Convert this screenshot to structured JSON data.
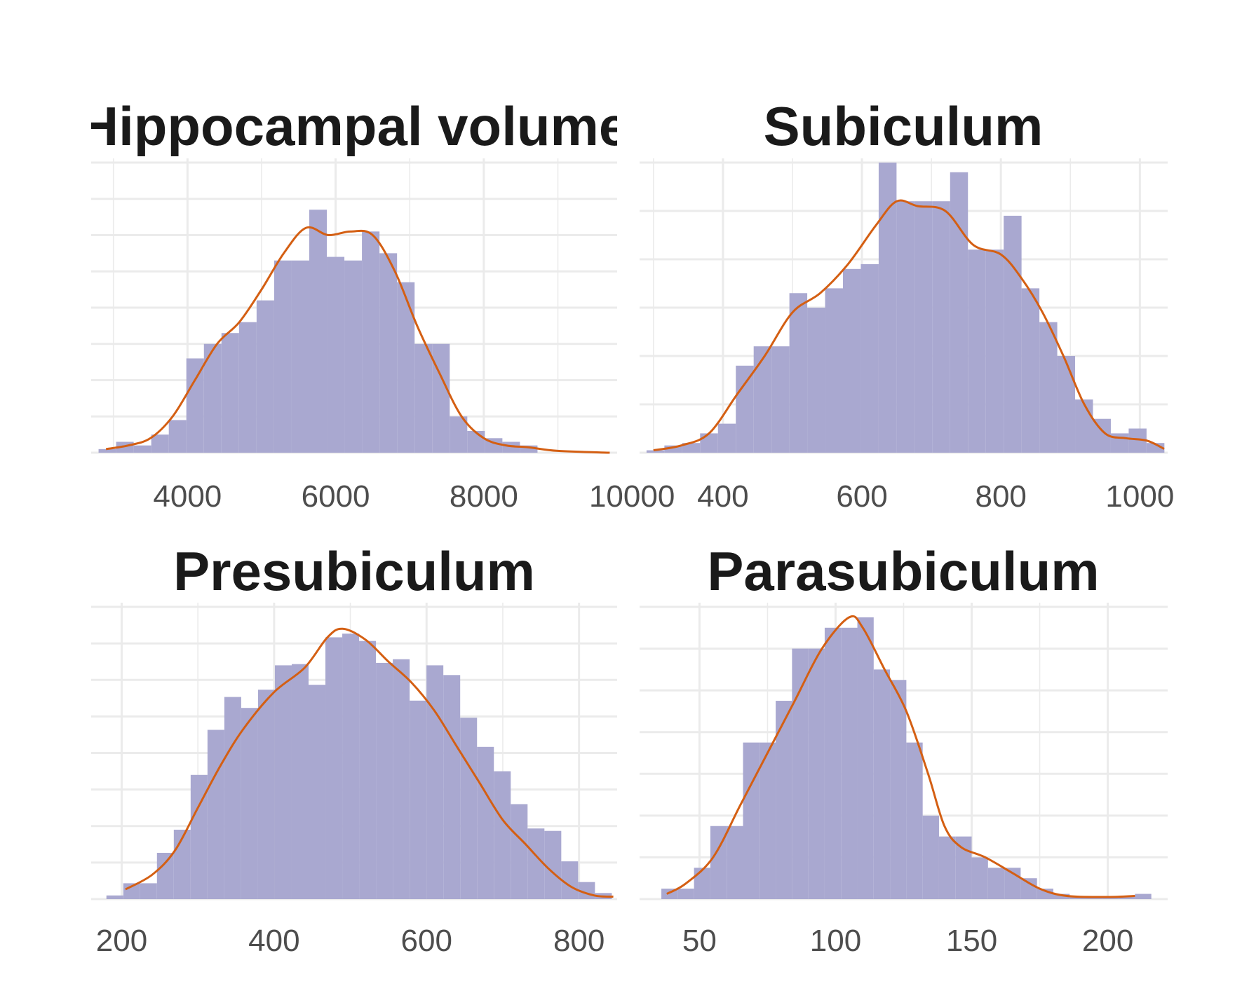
{
  "colors": {
    "bar_fill": "#a9a8d0",
    "density_line": "#d45f13",
    "grid": "#ebebeb",
    "title": "#1a1a1a",
    "tick": "#4d4d4d"
  },
  "chart_data": [
    {
      "type": "bar",
      "title": "Hippocampal volume",
      "xlim": [
        2700,
        9800
      ],
      "xticks": [
        4000,
        6000,
        8000,
        10000
      ],
      "tick_labels": [
        "4000",
        "6000",
        "8000",
        "10000"
      ],
      "binwidth": 237,
      "bins": [
        2800,
        3037,
        3274,
        3511,
        3748,
        3985,
        4222,
        4459,
        4696,
        4933,
        5170,
        5407,
        5644,
        5881,
        6118,
        6355,
        6592,
        6829,
        7066,
        7303,
        7540,
        7777,
        8014,
        8251,
        8488,
        8725,
        8962,
        9199,
        9436,
        9673
      ],
      "counts": [
        1,
        3,
        2,
        5,
        9,
        26,
        30,
        33,
        36,
        42,
        53,
        53,
        67,
        54,
        53,
        61,
        55,
        47,
        30,
        30,
        10,
        6,
        4,
        3,
        2,
        0,
        0,
        0,
        0,
        0
      ],
      "density": [
        [
          2900,
          1
        ],
        [
          3200,
          2
        ],
        [
          3500,
          4
        ],
        [
          3800,
          10
        ],
        [
          4100,
          20
        ],
        [
          4400,
          30
        ],
        [
          4700,
          36
        ],
        [
          5000,
          45
        ],
        [
          5300,
          55
        ],
        [
          5600,
          62
        ],
        [
          5900,
          60
        ],
        [
          6200,
          61
        ],
        [
          6500,
          60
        ],
        [
          6800,
          50
        ],
        [
          7100,
          35
        ],
        [
          7400,
          22
        ],
        [
          7700,
          10
        ],
        [
          8000,
          4
        ],
        [
          8300,
          2
        ],
        [
          8600,
          1.5
        ],
        [
          9000,
          0.5
        ],
        [
          9700,
          0
        ]
      ],
      "grid_y": [
        0,
        10,
        20,
        30,
        40,
        50,
        60,
        70,
        80
      ]
    },
    {
      "type": "bar",
      "title": "Subiculum",
      "xlim": [
        280,
        1040
      ],
      "xticks": [
        400,
        600,
        800,
        1000
      ],
      "tick_labels": [
        "400",
        "600",
        "800",
        "1000"
      ],
      "binwidth": 25.7,
      "bins": [
        290,
        315.7,
        341.4,
        367.1,
        392.8,
        418.5,
        444.2,
        469.9,
        495.6,
        521.3,
        547,
        572.7,
        598.4,
        624.1,
        649.8,
        675.5,
        701.2,
        726.9,
        752.6,
        778.3,
        804,
        829.7,
        855.4,
        881.1,
        906.8,
        932.5,
        958.2,
        983.9,
        1009.6
      ],
      "counts": [
        0.5,
        1.5,
        2,
        4,
        6,
        18,
        22,
        22,
        33,
        30,
        34,
        38,
        39,
        60,
        52,
        52,
        52,
        58,
        42,
        42,
        49,
        34,
        27,
        20,
        11,
        7,
        4,
        5,
        2
      ],
      "density": [
        [
          300,
          0.5
        ],
        [
          340,
          1.5
        ],
        [
          380,
          4
        ],
        [
          420,
          12
        ],
        [
          460,
          20
        ],
        [
          500,
          29
        ],
        [
          540,
          33
        ],
        [
          580,
          39
        ],
        [
          620,
          47
        ],
        [
          650,
          52
        ],
        [
          680,
          51
        ],
        [
          720,
          50
        ],
        [
          760,
          43
        ],
        [
          800,
          41
        ],
        [
          830,
          36
        ],
        [
          860,
          29
        ],
        [
          890,
          20
        ],
        [
          920,
          10
        ],
        [
          950,
          4
        ],
        [
          980,
          3
        ],
        [
          1010,
          2.5
        ],
        [
          1035,
          0.8
        ]
      ],
      "grid_y": [
        0,
        10,
        20,
        30,
        40,
        50,
        60
      ]
    },
    {
      "type": "bar",
      "title": "Presubiculum",
      "xlim": [
        160,
        850
      ],
      "xticks": [
        200,
        400,
        600,
        800
      ],
      "tick_labels": [
        "200",
        "400",
        "600",
        "800"
      ],
      "binwidth": 22.1,
      "bins": [
        180,
        202.1,
        224.2,
        246.3,
        268.4,
        290.5,
        312.6,
        334.7,
        356.8,
        378.9,
        401,
        423.1,
        445.2,
        467.3,
        489.4,
        511.5,
        533.6,
        555.7,
        577.8,
        599.9,
        622,
        644.1,
        666.2,
        688.3,
        710.4,
        732.5,
        754.6,
        776.7,
        798.8,
        820.9
      ],
      "counts": [
        0.3,
        1.3,
        1.3,
        3.8,
        5.7,
        10.2,
        13.9,
        16.6,
        15.7,
        17.2,
        19.2,
        19.3,
        17.6,
        21.5,
        21.8,
        21.2,
        19.4,
        19.7,
        16.3,
        19.2,
        18.4,
        14.9,
        12.5,
        10.5,
        7.8,
        5.8,
        5.6,
        3.1,
        1.4,
        0.5
      ],
      "density": [
        [
          205,
          0.8
        ],
        [
          240,
          2
        ],
        [
          270,
          4
        ],
        [
          300,
          7.5
        ],
        [
          330,
          11
        ],
        [
          360,
          14
        ],
        [
          400,
          17
        ],
        [
          440,
          19
        ],
        [
          470,
          21.5
        ],
        [
          490,
          22.2
        ],
        [
          520,
          21.3
        ],
        [
          550,
          19.5
        ],
        [
          580,
          17.8
        ],
        [
          610,
          15.5
        ],
        [
          640,
          12.5
        ],
        [
          670,
          9.5
        ],
        [
          700,
          6.5
        ],
        [
          730,
          4.5
        ],
        [
          760,
          2.5
        ],
        [
          790,
          1
        ],
        [
          820,
          0.3
        ],
        [
          845,
          0.2
        ]
      ],
      "grid_y": [
        0,
        3,
        6,
        9,
        12,
        15,
        18,
        21,
        24
      ]
    },
    {
      "type": "bar",
      "title": "Parasubiculum",
      "xlim": [
        28,
        222
      ],
      "xticks": [
        50,
        100,
        150,
        200
      ],
      "tick_labels": [
        "50",
        "100",
        "150",
        "200"
      ],
      "binwidth": 6,
      "bins": [
        36,
        42,
        48,
        54,
        60,
        66,
        72,
        78,
        84,
        90,
        96,
        102,
        108,
        114,
        120,
        126,
        132,
        138,
        144,
        150,
        156,
        162,
        168,
        174,
        180,
        186,
        192,
        198,
        204,
        210
      ],
      "counts": [
        1,
        1,
        3,
        7,
        7,
        15,
        15,
        19,
        24,
        24,
        26,
        26,
        27,
        22,
        21,
        15,
        8,
        6,
        6,
        4,
        3,
        3,
        2,
        1,
        0.5,
        0.2,
        0.2,
        0.2,
        0.2,
        0.5
      ],
      "density": [
        [
          38,
          0.5
        ],
        [
          45,
          1.5
        ],
        [
          55,
          4
        ],
        [
          65,
          9
        ],
        [
          75,
          14
        ],
        [
          85,
          19
        ],
        [
          95,
          24
        ],
        [
          105,
          27
        ],
        [
          110,
          26
        ],
        [
          118,
          22
        ],
        [
          126,
          18
        ],
        [
          134,
          12
        ],
        [
          140,
          7
        ],
        [
          146,
          5
        ],
        [
          155,
          4
        ],
        [
          165,
          2.5
        ],
        [
          175,
          1
        ],
        [
          185,
          0.3
        ],
        [
          200,
          0.2
        ],
        [
          210,
          0.3
        ]
      ],
      "grid_y": [
        0,
        4,
        8,
        12,
        16,
        20,
        24,
        28
      ]
    }
  ]
}
